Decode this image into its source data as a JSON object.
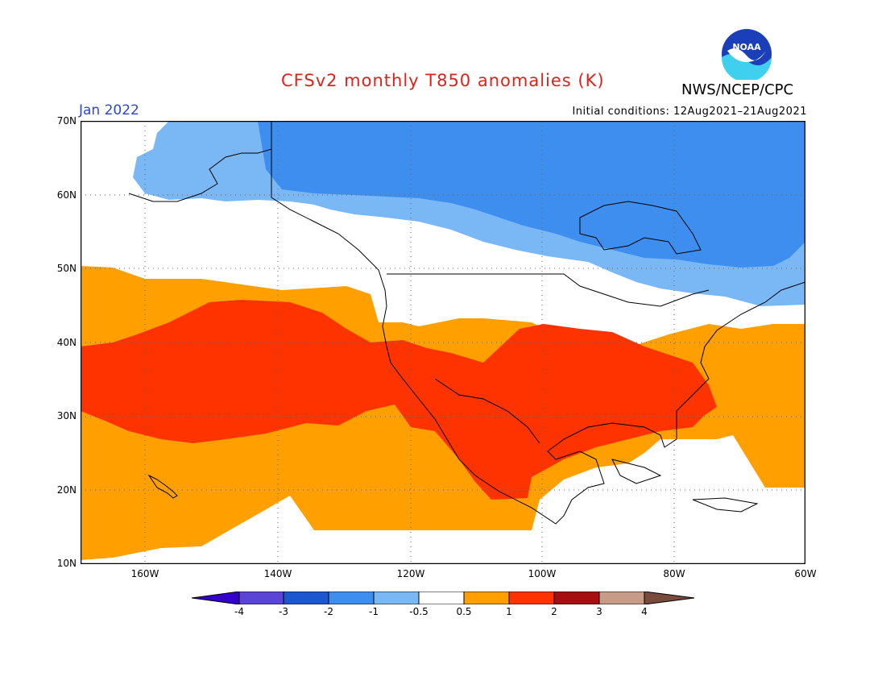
{
  "title": "CFSv2 monthly T850 anomalies (K)",
  "month": "Jan 2022",
  "agency": "NWS/NCEP/CPC",
  "logo_text": "NOAA",
  "initial_conditions": "Initial conditions: 12Aug2021–21Aug2021",
  "colors": {
    "title": "#e0221a",
    "month": "#2a43e6",
    "c_m3": "#1c57cf",
    "c_m2": "#3e8ef0",
    "c_m1": "#7ab8f5",
    "c_neutral": "#ffffff",
    "c_p05": "#ff9f00",
    "c_p1": "#ff3300",
    "c_p2": "#a50f0f",
    "c_p3": "#c89a88",
    "c_p4": "#7a4a3c",
    "c_m4": "#3300cc",
    "c_m4b": "#5b45d6"
  },
  "lat_labels": [
    "70N",
    "60N",
    "50N",
    "40N",
    "30N",
    "20N",
    "10N"
  ],
  "lon_labels": [
    "160W",
    "140W",
    "120W",
    "100W",
    "80W",
    "60W"
  ],
  "colorbar_labels": [
    "-4",
    "-3",
    "-2",
    "-1",
    "-0.5",
    "0.5",
    "1",
    "2",
    "3",
    "4"
  ]
}
